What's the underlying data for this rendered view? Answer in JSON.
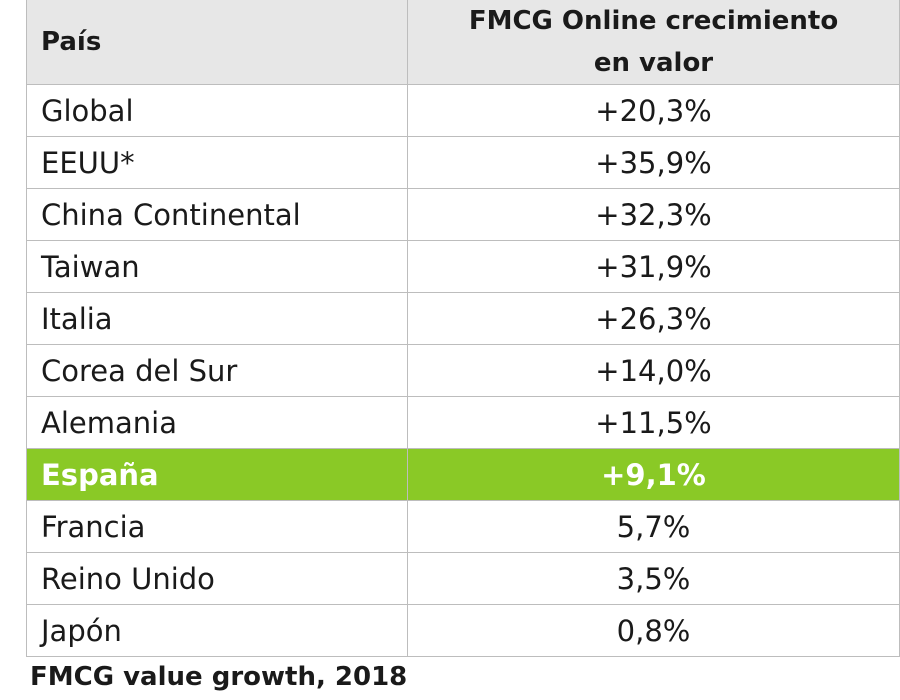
{
  "chart_data": {
    "type": "table",
    "columns": [
      "País",
      "FMCG Online crecimiento en valor"
    ],
    "header": {
      "country": "País",
      "value_line1": "FMCG Online crecimiento",
      "value_line2": "en valor"
    },
    "rows": [
      {
        "country": "Global",
        "value": "+20,3%",
        "highlight": false
      },
      {
        "country": "EEUU*",
        "value": "+35,9%",
        "highlight": false
      },
      {
        "country": "China Continental",
        "value": "+32,3%",
        "highlight": false
      },
      {
        "country": "Taiwan",
        "value": "+31,9%",
        "highlight": false
      },
      {
        "country": "Italia",
        "value": "+26,3%",
        "highlight": false
      },
      {
        "country": "Corea del Sur",
        "value": "+14,0%",
        "highlight": false
      },
      {
        "country": "Alemania",
        "value": "+11,5%",
        "highlight": false
      },
      {
        "country": "España",
        "value": "+9,1%",
        "highlight": true
      },
      {
        "country": "Francia",
        "value": "5,7%",
        "highlight": false
      },
      {
        "country": "Reino Unido",
        "value": "3,5%",
        "highlight": false
      },
      {
        "country": "Japón",
        "value": "0,8%",
        "highlight": false
      }
    ],
    "caption": "FMCG value growth, 2018"
  },
  "colors": {
    "header_bg": "#e7e7e7",
    "highlight_bg": "#8ac926",
    "highlight_text": "#ffffff",
    "border": "#bdbdbd"
  }
}
